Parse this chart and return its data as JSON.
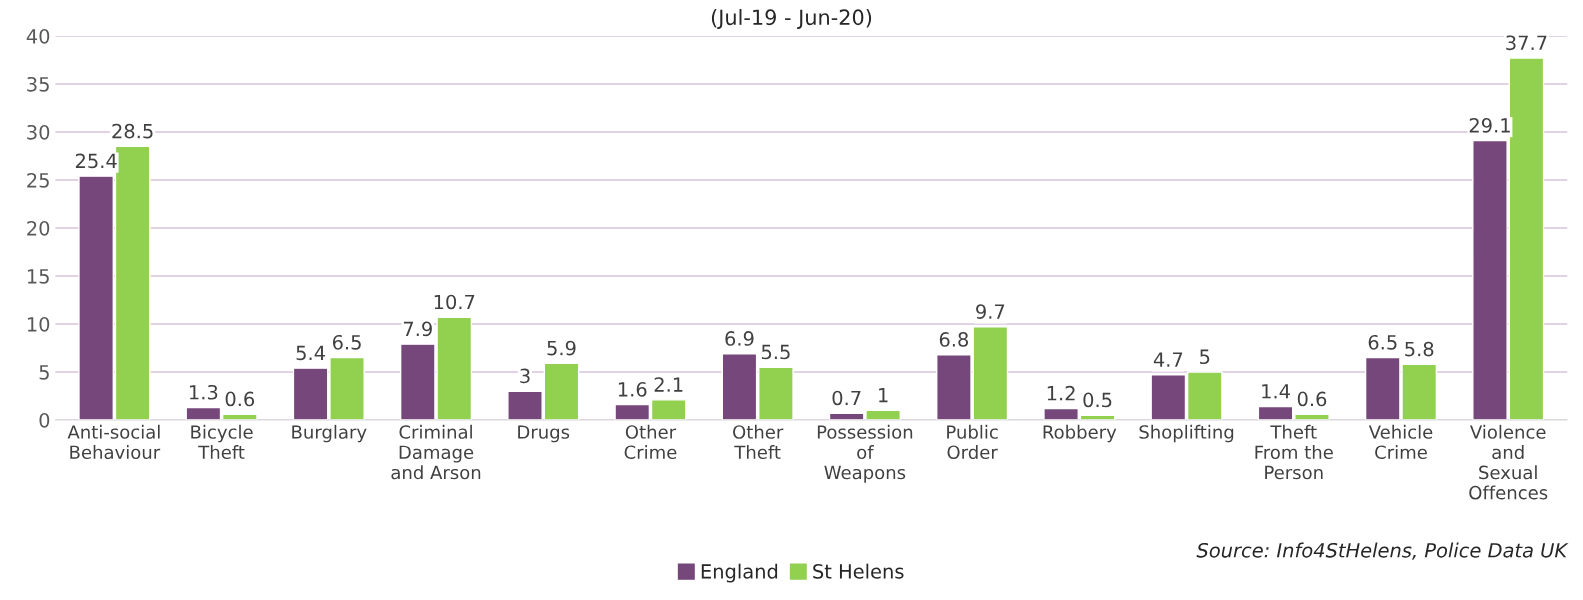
{
  "chart_data": {
    "type": "bar",
    "title": "(Jul-19 - Jun-20)",
    "categories": [
      "Anti-social Behaviour",
      "Bicycle Theft",
      "Burglary",
      "Criminal Damage and Arson",
      "Drugs",
      "Other Crime",
      "Other Theft",
      "Possession of Weapons",
      "Public Order",
      "Robbery",
      "Shoplifting",
      "Theft From the Person",
      "Vehicle Crime",
      "Violence and Sexual Offences"
    ],
    "series": [
      {
        "name": "England",
        "color": "#76477a",
        "values": [
          25.4,
          1.3,
          5.4,
          7.9,
          3,
          1.6,
          6.9,
          0.7,
          6.8,
          1.2,
          4.7,
          1.4,
          6.5,
          29.1
        ]
      },
      {
        "name": "St Helens",
        "color": "#92d050",
        "values": [
          28.5,
          0.6,
          6.5,
          10.7,
          5.9,
          2.1,
          5.5,
          1,
          9.7,
          0.5,
          5,
          0.6,
          5.8,
          37.7
        ]
      }
    ],
    "ylim": [
      0,
      40
    ],
    "yticks": [
      0,
      5,
      10,
      15,
      20,
      25,
      30,
      35,
      40
    ],
    "grid": "y",
    "legend": "bottom",
    "data_labels": true,
    "annotations": [
      "Source: Info4StHelens, Police Data UK"
    ]
  }
}
